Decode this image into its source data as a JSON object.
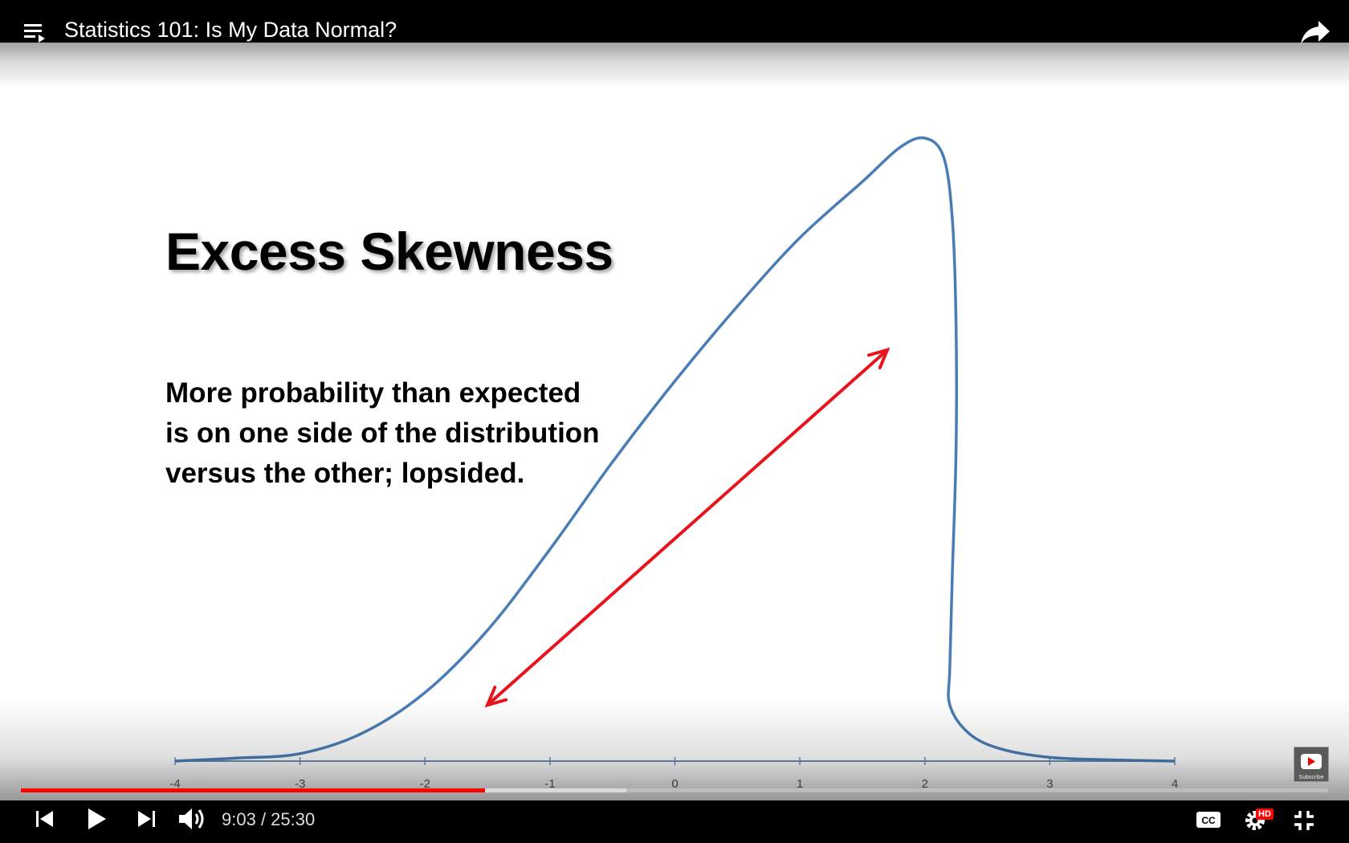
{
  "header": {
    "title": "Statistics 101: Is My Data Normal?"
  },
  "slide": {
    "title": "Excess Skewness",
    "body_lines": [
      "More probability than expected",
      "is on one side of the distribution",
      "versus the other; lopsided."
    ]
  },
  "chart_data": {
    "type": "line",
    "title": "",
    "xlabel": "",
    "ylabel": "",
    "xlim": [
      -4,
      4
    ],
    "ylim": [
      0,
      1
    ],
    "x_ticks": [
      "-4",
      "-3",
      "-2",
      "-1",
      "0",
      "1",
      "2",
      "3",
      "4"
    ],
    "grid": false,
    "series": [
      {
        "color": "#4a7db5",
        "x": [
          -4.0,
          -3.5,
          -3.0,
          -2.5,
          -2.0,
          -1.5,
          -1.0,
          -0.5,
          0.0,
          0.5,
          1.0,
          1.5,
          1.8,
          2.0,
          2.15,
          2.22,
          2.25,
          2.25,
          2.22,
          2.2,
          2.2,
          2.35,
          2.6,
          3.0,
          3.5,
          4.0
        ],
        "y": [
          0.0,
          0.005,
          0.012,
          0.045,
          0.11,
          0.21,
          0.34,
          0.48,
          0.61,
          0.73,
          0.84,
          0.93,
          0.985,
          1.0,
          0.97,
          0.87,
          0.7,
          0.5,
          0.3,
          0.15,
          0.09,
          0.045,
          0.02,
          0.006,
          0.002,
          0.0
        ]
      }
    ],
    "annotations": [
      {
        "type": "double-arrow",
        "color": "#e8141c",
        "x1": -1.5,
        "y1": 0.09,
        "x2": 1.7,
        "y2": 0.66
      }
    ]
  },
  "player": {
    "current_time": "9:03",
    "duration": "25:30",
    "played_fraction": 0.355,
    "buffered_fraction": 0.463,
    "hd_badge": "HD",
    "subscribe_label": "Subscribe",
    "icons": {
      "playlist": "playlist-icon",
      "share": "share-icon",
      "previous": "previous-icon",
      "play": "play-icon",
      "next": "next-icon",
      "volume": "volume-icon",
      "captions": "captions-icon",
      "settings": "settings-icon",
      "exit_fullscreen": "exit-fullscreen-icon"
    },
    "accent_color": "#ff0000"
  }
}
